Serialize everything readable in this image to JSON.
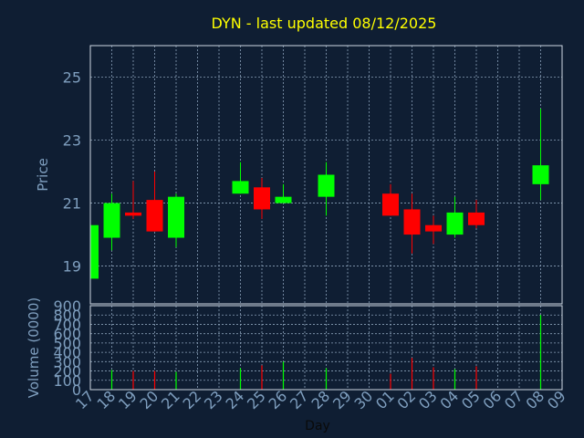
{
  "title": "DYN - last updated 08/12/2025",
  "chart_data": [
    {
      "type": "candlestick",
      "ylabel": "Price",
      "ylim": [
        17.8,
        26
      ],
      "yticks": [
        19,
        21,
        23,
        25
      ],
      "grid": true,
      "candles": [
        {
          "day": "17",
          "open": 18.6,
          "high": 20.3,
          "low": 18.6,
          "close": 20.3
        },
        {
          "day": "18",
          "open": 19.9,
          "high": 21.3,
          "low": 19.5,
          "close": 21.0
        },
        {
          "day": "19",
          "open": 20.7,
          "high": 21.7,
          "low": 20.5,
          "close": 20.6
        },
        {
          "day": "20",
          "open": 21.1,
          "high": 22.0,
          "low": 20.1,
          "close": 20.1
        },
        {
          "day": "21",
          "open": 19.9,
          "high": 21.3,
          "low": 19.6,
          "close": 21.2
        },
        {
          "day": "24",
          "open": 21.3,
          "high": 22.3,
          "low": 21.3,
          "close": 21.7
        },
        {
          "day": "25",
          "open": 21.5,
          "high": 21.8,
          "low": 20.5,
          "close": 20.8
        },
        {
          "day": "26",
          "open": 21.0,
          "high": 21.6,
          "low": 21.0,
          "close": 21.2
        },
        {
          "day": "28",
          "open": 21.2,
          "high": 22.3,
          "low": 20.6,
          "close": 21.9
        },
        {
          "day": "01",
          "open": 21.3,
          "high": 21.6,
          "low": 20.6,
          "close": 20.6
        },
        {
          "day": "02",
          "open": 20.8,
          "high": 21.3,
          "low": 19.4,
          "close": 20.0
        },
        {
          "day": "03",
          "open": 20.3,
          "high": 20.6,
          "low": 19.7,
          "close": 20.1
        },
        {
          "day": "04",
          "open": 20.0,
          "high": 21.2,
          "low": 19.9,
          "close": 20.7
        },
        {
          "day": "05",
          "open": 20.7,
          "high": 21.1,
          "low": 20.2,
          "close": 20.3
        },
        {
          "day": "08",
          "open": 21.6,
          "high": 24.0,
          "low": 21.1,
          "close": 22.2
        }
      ]
    },
    {
      "type": "bar",
      "xlabel": "Day",
      "ylabel": "Volume (0000)",
      "ylim": [
        0,
        900
      ],
      "yticks": [
        0,
        100,
        200,
        300,
        400,
        500,
        600,
        700,
        800,
        900
      ],
      "x_ticks": [
        "17",
        "18",
        "19",
        "20",
        "21",
        "22",
        "23",
        "24",
        "25",
        "26",
        "27",
        "28",
        "29",
        "30",
        "01",
        "02",
        "03",
        "04",
        "05",
        "06",
        "07",
        "08",
        "09"
      ],
      "grid": true,
      "volumes": [
        {
          "day": "18",
          "value": 210,
          "direction": "up"
        },
        {
          "day": "19",
          "value": 200,
          "direction": "down"
        },
        {
          "day": "20",
          "value": 200,
          "direction": "down"
        },
        {
          "day": "21",
          "value": 190,
          "direction": "up"
        },
        {
          "day": "24",
          "value": 230,
          "direction": "up"
        },
        {
          "day": "25",
          "value": 260,
          "direction": "down"
        },
        {
          "day": "26",
          "value": 300,
          "direction": "up"
        },
        {
          "day": "28",
          "value": 230,
          "direction": "up"
        },
        {
          "day": "01",
          "value": 170,
          "direction": "down"
        },
        {
          "day": "02",
          "value": 340,
          "direction": "down"
        },
        {
          "day": "03",
          "value": 240,
          "direction": "down"
        },
        {
          "day": "04",
          "value": 220,
          "direction": "up"
        },
        {
          "day": "05",
          "value": 250,
          "direction": "down"
        },
        {
          "day": "08",
          "value": 800,
          "direction": "up"
        }
      ]
    }
  ],
  "colors": {
    "background": "#0f1e33",
    "title": "#ffff00",
    "axis_text": "#7f9fbf",
    "xlabel_text": "#0a0a0a",
    "frame": "#cfd8e3",
    "grid": "#8aa0b8",
    "up": "#00ff00",
    "down": "#ff0000"
  }
}
